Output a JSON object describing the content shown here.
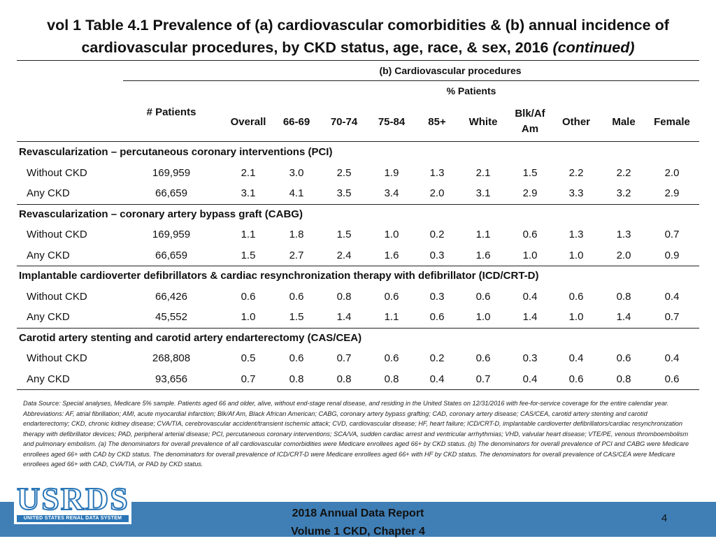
{
  "title": {
    "line1": "vol 1 Table 4.1 Prevalence of (a) cardiovascular comorbidities & (b) annual incidence of",
    "line2": "cardiovascular procedures, by CKD status, age, race, & sex, 2016",
    "continued": "(continued)"
  },
  "table": {
    "section_header": "(b) Cardiovascular procedures",
    "pct_header": "% Patients",
    "patients_header": "# Patients",
    "columns": [
      "Overall",
      "66-69",
      "70-74",
      "75-84",
      "85+",
      "White",
      "Blk/Af Am",
      "Other",
      "Male",
      "Female"
    ],
    "column_blkaf_line1": "Blk/Af",
    "column_blkaf_line2": "Am",
    "groups": [
      {
        "title": "Revascularization – percutaneous coronary interventions (PCI)",
        "rows": [
          {
            "label": "Without CKD",
            "patients": "169,959",
            "values": [
              "2.1",
              "3.0",
              "2.5",
              "1.9",
              "1.3",
              "2.1",
              "1.5",
              "2.2",
              "2.2",
              "2.0"
            ]
          },
          {
            "label": "Any CKD",
            "patients": "66,659",
            "values": [
              "3.1",
              "4.1",
              "3.5",
              "3.4",
              "2.0",
              "3.1",
              "2.9",
              "3.3",
              "3.2",
              "2.9"
            ]
          }
        ]
      },
      {
        "title": "Revascularization – coronary artery bypass graft (CABG)",
        "rows": [
          {
            "label": "Without CKD",
            "patients": "169,959",
            "values": [
              "1.1",
              "1.8",
              "1.5",
              "1.0",
              "0.2",
              "1.1",
              "0.6",
              "1.3",
              "1.3",
              "0.7"
            ]
          },
          {
            "label": "Any CKD",
            "patients": "66,659",
            "values": [
              "1.5",
              "2.7",
              "2.4",
              "1.6",
              "0.3",
              "1.6",
              "1.0",
              "1.0",
              "2.0",
              "0.9"
            ]
          }
        ]
      },
      {
        "title": "Implantable cardioverter defibrillators & cardiac resynchronization therapy with defibrillator (ICD/CRT-D)",
        "rows": [
          {
            "label": "Without CKD",
            "patients": "66,426",
            "values": [
              "0.6",
              "0.6",
              "0.8",
              "0.6",
              "0.3",
              "0.6",
              "0.4",
              "0.6",
              "0.8",
              "0.4"
            ]
          },
          {
            "label": "Any CKD",
            "patients": "45,552",
            "values": [
              "1.0",
              "1.5",
              "1.4",
              "1.1",
              "0.6",
              "1.0",
              "1.4",
              "1.0",
              "1.4",
              "0.7"
            ]
          }
        ]
      },
      {
        "title": "Carotid artery stenting and carotid artery endarterectomy (CAS/CEA)",
        "rows": [
          {
            "label": "Without CKD",
            "patients": "268,808",
            "values": [
              "0.5",
              "0.6",
              "0.7",
              "0.6",
              "0.2",
              "0.6",
              "0.3",
              "0.4",
              "0.6",
              "0.4"
            ]
          },
          {
            "label": "Any CKD",
            "patients": "93,656",
            "values": [
              "0.7",
              "0.8",
              "0.8",
              "0.8",
              "0.4",
              "0.7",
              "0.4",
              "0.6",
              "0.8",
              "0.6"
            ]
          }
        ]
      }
    ]
  },
  "notes": "Data Source: Special analyses, Medicare 5% sample. Patients aged 66 and older, alive, without end-stage renal disease, and residing in the United States on 12/31/2016 with fee-for-service coverage for the entire calendar year. Abbreviations: AF, atrial fibrillation; AMI, acute myocardial infarction; Blk/Af Am, Black African American; CABG, coronary artery bypass grafting; CAD, coronary artery disease; CAS/CEA, carotid artery stenting and carotid endarterectomy; CKD, chronic kidney disease; CVA/TIA, cerebrovascular accident/transient ischemic attack; CVD, cardiovascular disease; HF, heart failure; ICD/CRT-D, implantable cardioverter defibrillators/cardiac resynchronization therapy with defibrillator devices; PAD, peripheral arterial disease; PCI, percutaneous coronary interventions; SCA/VA, sudden cardiac arrest and ventricular arrhythmias; VHD, valvular heart disease; VTE/PE, venous thromboembolism and pulmonary embolism. (a) The denominators for overall prevalence of all cardiovascular comorbidities were Medicare enrollees aged 66+ by CKD status. (b) The denominators for overall prevalence of PCI and CABG were Medicare enrollees aged 66+ with CAD by CKD status. The denominators for overall prevalence of ICD/CRT-D were Medicare enrollees aged 66+ with HF by CKD status. The denominators for overall prevalence of CAS/CEA were Medicare enrollees aged 66+ with CAD, CVA/TIA, or PAD by CKD status.",
  "footer": {
    "logo_text": "USRDS",
    "logo_subtitle": "UNITED STATES RENAL DATA SYSTEM",
    "line1": "2018 Annual Data Report",
    "line2": "Volume 1 CKD, Chapter 4",
    "page_number": "4"
  },
  "colors": {
    "footer_band": "#3f7fb6",
    "logo_blue": "#2a76b7"
  }
}
